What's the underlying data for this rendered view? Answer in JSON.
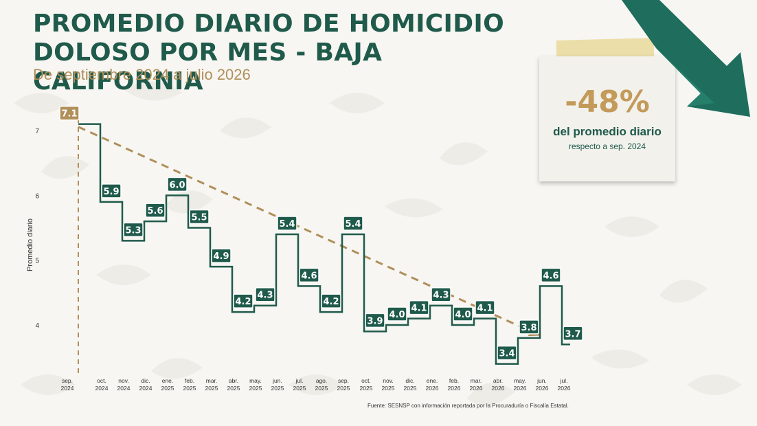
{
  "header": {
    "title": "PROMEDIO DIARIO DE HOMICIDIO DOLOSO POR MES - BAJA CALIFORNIA",
    "subtitle": "De septiembre 2024 a julio 2026"
  },
  "note": {
    "big": "-48%",
    "mid": "del promedio diario",
    "small": "respecto a sep. 2024"
  },
  "source": "Fuente: SESNSP con información reportada por la Procuraduría o Fiscalía Estatal.",
  "colors": {
    "title": "#1f5a4b",
    "line": "#1f5a4b",
    "label_bg": "#1f5a4b",
    "trend": "#b08f5a",
    "first_label_bg": "#b08f5a",
    "arrow": "#1f6e5d"
  },
  "chart_data": {
    "type": "line",
    "step": true,
    "categories": [
      [
        "sep.",
        "2024"
      ],
      [
        "oct.",
        "2024"
      ],
      [
        "nov.",
        "2024"
      ],
      [
        "dic.",
        "2024"
      ],
      [
        "ene.",
        "2025"
      ],
      [
        "feb.",
        "2025"
      ],
      [
        "mar.",
        "2025"
      ],
      [
        "abr.",
        "2025"
      ],
      [
        "may.",
        "2025"
      ],
      [
        "jun.",
        "2025"
      ],
      [
        "jul.",
        "2025"
      ],
      [
        "ago.",
        "2025"
      ],
      [
        "sep.",
        "2025"
      ],
      [
        "oct.",
        "2025"
      ],
      [
        "nov.",
        "2025"
      ],
      [
        "dic.",
        "2025"
      ],
      [
        "ene.",
        "2026"
      ],
      [
        "feb.",
        "2026"
      ],
      [
        "mar.",
        "2026"
      ],
      [
        "abr.",
        "2026"
      ],
      [
        "may.",
        "2026"
      ],
      [
        "jun.",
        "2026"
      ],
      [
        "jul.",
        "2026"
      ]
    ],
    "values": [
      7.1,
      5.9,
      5.3,
      5.6,
      6.0,
      5.5,
      4.9,
      4.2,
      4.3,
      5.4,
      4.6,
      4.2,
      5.4,
      3.9,
      4.0,
      4.1,
      4.3,
      4.0,
      4.1,
      3.4,
      3.8,
      4.6,
      3.7
    ],
    "ylabel": "Promedio diario",
    "yticks": [
      4,
      5,
      6,
      7
    ],
    "ylim": [
      3.3,
      7.2
    ],
    "trendline": {
      "from": 7.1,
      "to": 3.8,
      "style": "dashed"
    },
    "grid": false
  }
}
